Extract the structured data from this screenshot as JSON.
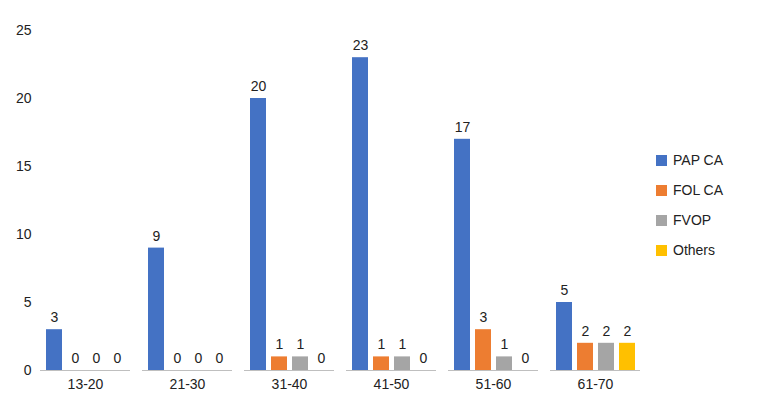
{
  "chart_data": {
    "type": "bar",
    "categories": [
      "13-20",
      "21-30",
      "31-40",
      "41-50",
      "51-60",
      "61-70"
    ],
    "series": [
      {
        "name": "PAP CA",
        "color": "#4472c4",
        "values": [
          3,
          9,
          20,
          23,
          17,
          5
        ]
      },
      {
        "name": "FOL CA",
        "color": "#ed7d31",
        "values": [
          0,
          0,
          1,
          1,
          3,
          2
        ]
      },
      {
        "name": "FVOP",
        "color": "#a5a5a5",
        "values": [
          0,
          0,
          1,
          1,
          1,
          2
        ]
      },
      {
        "name": "Others",
        "color": "#ffc000",
        "values": [
          0,
          0,
          0,
          0,
          0,
          2
        ]
      }
    ],
    "ylim": [
      0,
      25
    ],
    "yticks": [
      0,
      5,
      10,
      15,
      20,
      25
    ],
    "grid": false,
    "legend": "right",
    "data_labels": true
  }
}
